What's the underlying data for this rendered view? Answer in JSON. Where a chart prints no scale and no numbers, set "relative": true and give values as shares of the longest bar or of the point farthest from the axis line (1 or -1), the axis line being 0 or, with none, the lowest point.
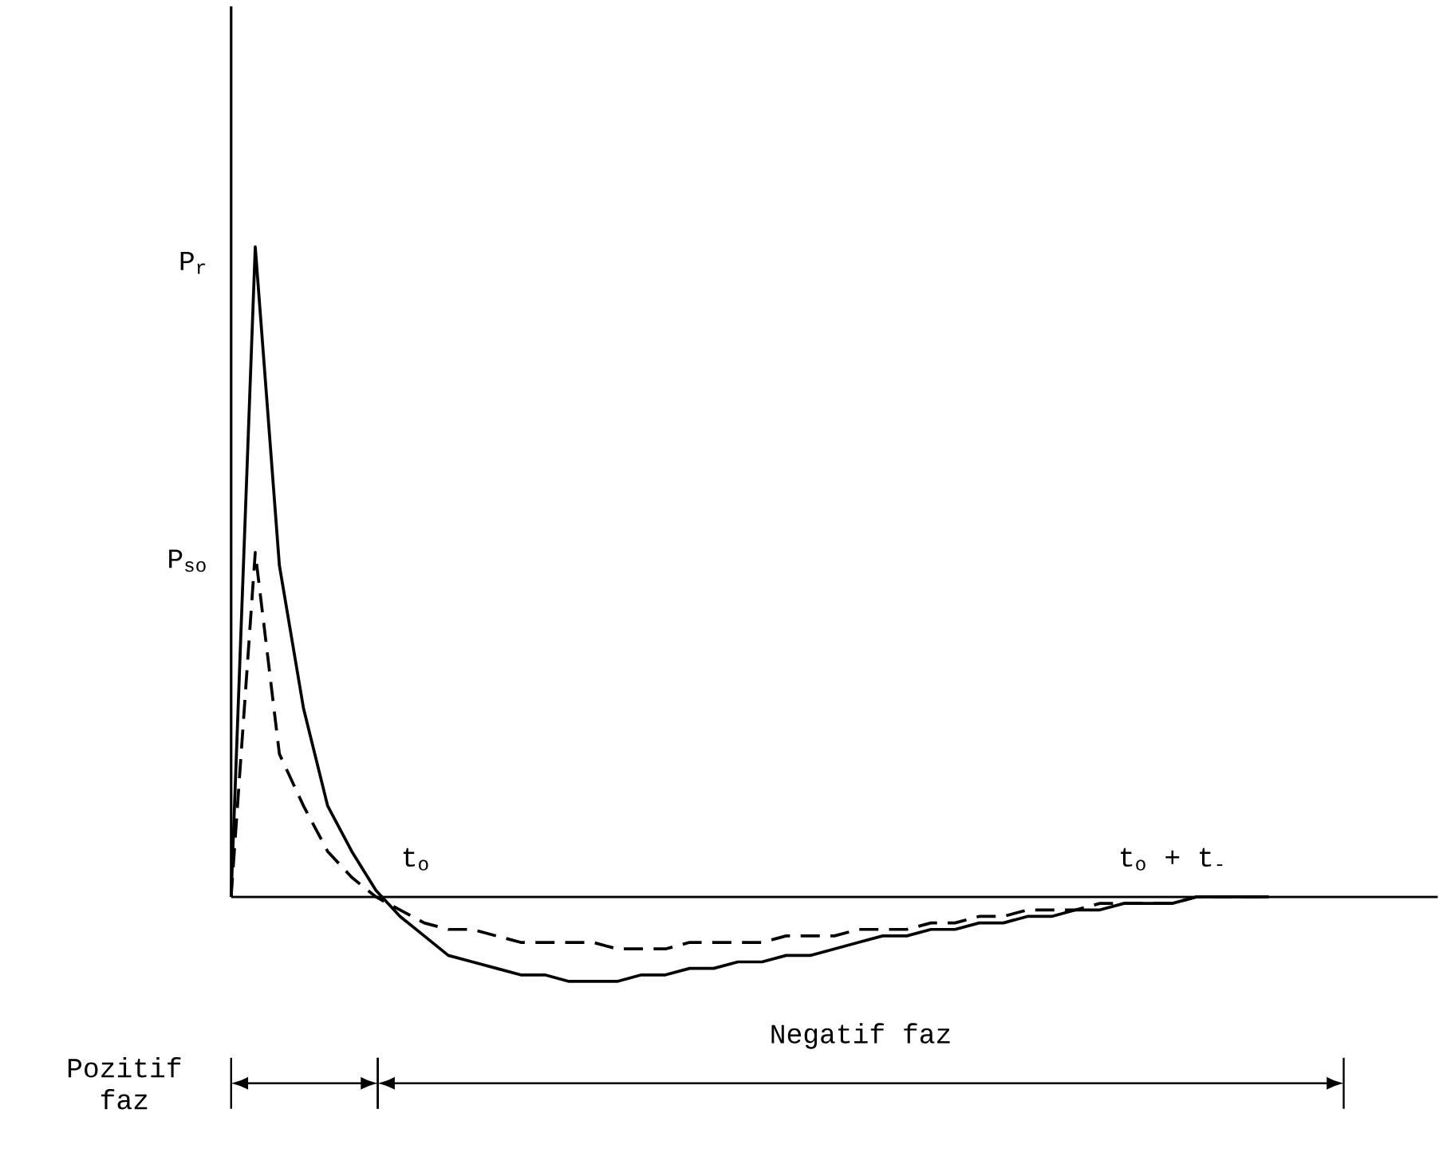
{
  "chart_data": {
    "type": "line",
    "relative": true,
    "categories": [
      null,
      null,
      null,
      null,
      null,
      null,
      null,
      null,
      null,
      null,
      null,
      null,
      null,
      null,
      null,
      null,
      null,
      null,
      null,
      null,
      null,
      null,
      null,
      null,
      null,
      null,
      null,
      null,
      null,
      null,
      null,
      null,
      null,
      null,
      null,
      null,
      null,
      null,
      null,
      null,
      null,
      null,
      null,
      null,
      null,
      null,
      null,
      null,
      null,
      null,
      null
    ],
    "series": [
      {
        "color": "#000000",
        "line_style": "solid",
        "values": [
          0,
          1,
          0.51,
          0.29,
          0.14,
          0.07,
          0.01,
          -0.03,
          -0.06,
          -0.09,
          -0.1,
          -0.11,
          -0.12,
          -0.12,
          -0.13,
          -0.13,
          -0.13,
          -0.12,
          -0.12,
          -0.11,
          -0.11,
          -0.1,
          -0.1,
          -0.09,
          -0.09,
          -0.08,
          -0.07,
          -0.06,
          -0.06,
          -0.05,
          -0.05,
          -0.04,
          -0.04,
          -0.03,
          -0.03,
          -0.02,
          -0.02,
          -0.01,
          -0.01,
          -0.01,
          0,
          0,
          0,
          0,
          null,
          null,
          null,
          null,
          null,
          null,
          null
        ]
      },
      {
        "color": "#000000",
        "line_style": "dashed",
        "values": [
          0,
          0.53,
          0.22,
          0.14,
          0.07,
          0.03,
          0,
          -0.02,
          -0.04,
          -0.05,
          -0.05,
          -0.06,
          -0.07,
          -0.07,
          -0.07,
          -0.07,
          -0.08,
          -0.08,
          -0.08,
          -0.07,
          -0.07,
          -0.07,
          -0.07,
          -0.06,
          -0.06,
          -0.06,
          -0.05,
          -0.05,
          -0.05,
          -0.04,
          -0.04,
          -0.03,
          -0.03,
          -0.02,
          -0.02,
          -0.02,
          -0.01,
          -0.01,
          -0.01,
          -0.01,
          0,
          0,
          0,
          0,
          null,
          null,
          null,
          null,
          null,
          null,
          null
        ]
      }
    ],
    "annotations": [
      "P$_{r}$",
      "P$_{so}$",
      "t$_{o}$",
      "t$_{o}$ + t$_{-}$",
      "Pozitif faz",
      "Negatif faz"
    ]
  }
}
